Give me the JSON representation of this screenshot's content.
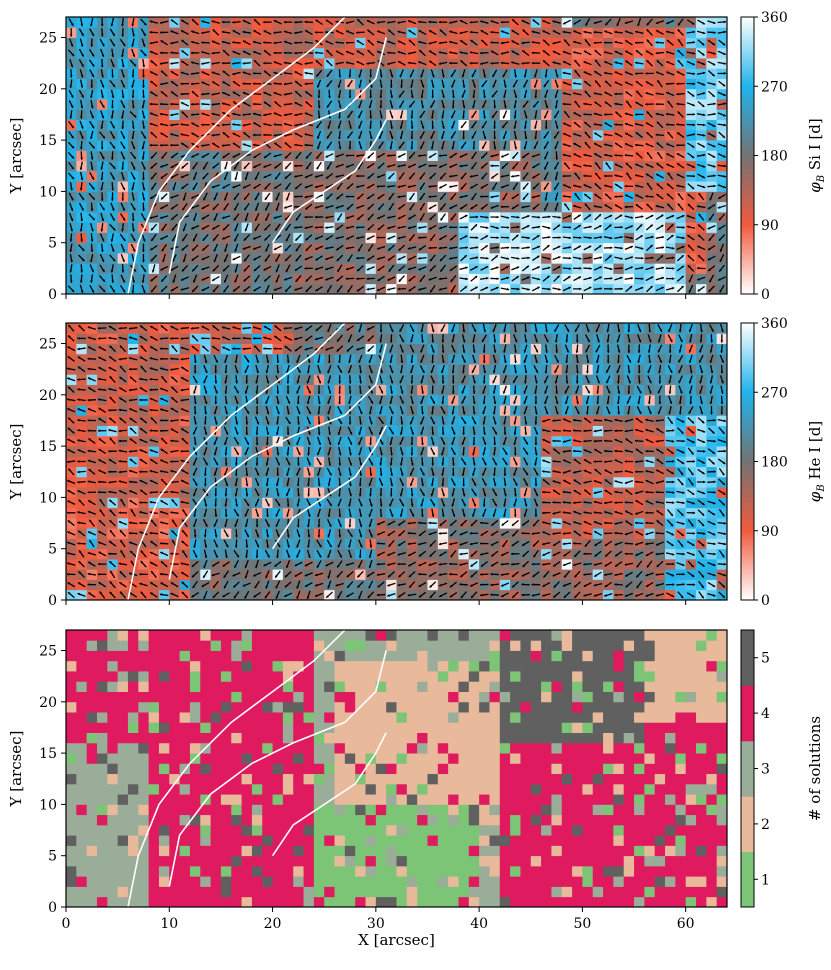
{
  "chart_data": [
    {
      "type": "heatmap",
      "panel": "top",
      "ylabel": "Y [arcsec]",
      "xlim": [
        0,
        64
      ],
      "ylim": [
        0,
        27
      ],
      "xticks": [
        0,
        10,
        20,
        30,
        40,
        50,
        60
      ],
      "yticks": [
        0,
        5,
        10,
        15,
        20,
        25
      ],
      "colorbar": {
        "label": "φB Si I [d]",
        "label_prefix": "φ",
        "label_sub": "B",
        "label_suffix": " Si I [d]",
        "range": [
          0,
          360
        ],
        "ticks": [
          0,
          90,
          180,
          270,
          360
        ],
        "colormap": [
          "#ffffff",
          "#f25a3e",
          "#737373",
          "#1fb4ec",
          "#ffffff"
        ]
      },
      "overlay": "magnetic field azimuth arrows and white intensity contours",
      "regions": [
        {
          "label": "left patchy blue / white",
          "x": [
            0,
            8
          ],
          "y": [
            0,
            27
          ],
          "value": 240
        },
        {
          "label": "upper-left red band",
          "x": [
            8,
            48
          ],
          "y": [
            14,
            27
          ],
          "value": 120
        },
        {
          "label": "central blue fan",
          "x": [
            24,
            50
          ],
          "y": [
            6,
            22
          ],
          "value": 215
        },
        {
          "label": "central gray sector",
          "x": [
            22,
            46
          ],
          "y": [
            0,
            14
          ],
          "value": 165
        },
        {
          "label": "right red column",
          "x": [
            48,
            62
          ],
          "y": [
            2,
            26
          ],
          "value": 110
        },
        {
          "label": "lower-right white / light blue",
          "x": [
            38,
            60
          ],
          "y": [
            0,
            8
          ],
          "value": 330
        },
        {
          "label": "upper-right blue corner",
          "x": [
            60,
            64
          ],
          "y": [
            10,
            27
          ],
          "value": 300
        }
      ],
      "contours": [
        [
          [
            6,
            0
          ],
          [
            7,
            5
          ],
          [
            9,
            10
          ],
          [
            12,
            14
          ],
          [
            16,
            18
          ],
          [
            20,
            21
          ],
          [
            24,
            24
          ],
          [
            27,
            27
          ]
        ],
        [
          [
            10,
            2
          ],
          [
            11,
            7
          ],
          [
            14,
            11
          ],
          [
            18,
            14
          ],
          [
            22,
            16
          ],
          [
            27,
            18
          ],
          [
            30,
            21
          ],
          [
            31,
            25
          ]
        ],
        [
          [
            20,
            5
          ],
          [
            22,
            8
          ],
          [
            25,
            10
          ],
          [
            28,
            12
          ],
          [
            30,
            15
          ],
          [
            31,
            17
          ]
        ]
      ]
    },
    {
      "type": "heatmap",
      "panel": "middle",
      "ylabel": "Y [arcsec]",
      "xlim": [
        0,
        64
      ],
      "ylim": [
        0,
        27
      ],
      "xticks": [
        0,
        10,
        20,
        30,
        40,
        50,
        60
      ],
      "yticks": [
        0,
        5,
        10,
        15,
        20,
        25
      ],
      "colorbar": {
        "label": "φB He I [d]",
        "label_prefix": "φ",
        "label_sub": "B",
        "label_suffix": " He I [d]",
        "range": [
          0,
          360
        ],
        "ticks": [
          0,
          90,
          180,
          270,
          360
        ],
        "colormap": [
          "#ffffff",
          "#f25a3e",
          "#737373",
          "#1fb4ec",
          "#ffffff"
        ]
      },
      "overlay": "magnetic field azimuth arrows and white intensity contours",
      "regions": [
        {
          "label": "left red wedge",
          "x": [
            0,
            22
          ],
          "y": [
            10,
            27
          ],
          "value": 115
        },
        {
          "label": "lower-left red strip",
          "x": [
            0,
            12
          ],
          "y": [
            0,
            10
          ],
          "value": 105
        },
        {
          "label": "diagonal blue band",
          "x": [
            12,
            46
          ],
          "y": [
            4,
            24
          ],
          "value": 230
        },
        {
          "label": "upper-right blue",
          "x": [
            30,
            64
          ],
          "y": [
            18,
            27
          ],
          "value": 225
        },
        {
          "label": "lower gray / red patches",
          "x": [
            30,
            58
          ],
          "y": [
            0,
            8
          ],
          "value": 160
        },
        {
          "label": "right red mix",
          "x": [
            46,
            58
          ],
          "y": [
            6,
            18
          ],
          "value": 125
        },
        {
          "label": "far-right light blue",
          "x": [
            58,
            64
          ],
          "y": [
            0,
            18
          ],
          "value": 290
        }
      ],
      "contours": [
        [
          [
            6,
            0
          ],
          [
            7,
            5
          ],
          [
            9,
            10
          ],
          [
            12,
            14
          ],
          [
            16,
            18
          ],
          [
            20,
            21
          ],
          [
            24,
            24
          ],
          [
            27,
            27
          ]
        ],
        [
          [
            10,
            2
          ],
          [
            11,
            7
          ],
          [
            14,
            11
          ],
          [
            18,
            14
          ],
          [
            22,
            16
          ],
          [
            27,
            18
          ],
          [
            30,
            21
          ],
          [
            31,
            25
          ]
        ],
        [
          [
            20,
            5
          ],
          [
            22,
            8
          ],
          [
            25,
            10
          ],
          [
            28,
            12
          ],
          [
            30,
            15
          ],
          [
            31,
            17
          ]
        ]
      ]
    },
    {
      "type": "heatmap",
      "panel": "bottom",
      "xlabel": "X [arcsec]",
      "ylabel": "Y [arcsec]",
      "xlim": [
        0,
        64
      ],
      "ylim": [
        0,
        27
      ],
      "xticks": [
        0,
        10,
        20,
        30,
        40,
        50,
        60
      ],
      "yticks": [
        0,
        5,
        10,
        15,
        20,
        25
      ],
      "colorbar": {
        "label": "# of solutions",
        "range": [
          0.5,
          5.5
        ],
        "ticks": [
          1,
          2,
          3,
          4,
          5
        ],
        "categories": [
          {
            "value": 1,
            "color": "#7cc576"
          },
          {
            "value": 2,
            "color": "#e8b99a"
          },
          {
            "value": 3,
            "color": "#9aad98"
          },
          {
            "value": 4,
            "color": "#e01a5e"
          },
          {
            "value": 5,
            "color": "#606060"
          }
        ]
      },
      "regions": [
        {
          "label": "left magenta",
          "x": [
            0,
            24
          ],
          "y": [
            16,
            27
          ],
          "value": 4
        },
        {
          "label": "left gray-green",
          "x": [
            0,
            12
          ],
          "y": [
            0,
            16
          ],
          "value": 3
        },
        {
          "label": "diagonal magenta band",
          "x": [
            8,
            24
          ],
          "y": [
            0,
            16
          ],
          "value": 4
        },
        {
          "label": "central peach",
          "x": [
            26,
            42
          ],
          "y": [
            8,
            24
          ],
          "value": 2
        },
        {
          "label": "lower-central green",
          "x": [
            24,
            40
          ],
          "y": [
            0,
            10
          ],
          "value": 1
        },
        {
          "label": "right magenta",
          "x": [
            42,
            64
          ],
          "y": [
            0,
            18
          ],
          "value": 4
        },
        {
          "label": "upper-right dark gray",
          "x": [
            42,
            56
          ],
          "y": [
            16,
            27
          ],
          "value": 5
        },
        {
          "label": "far-right peach / green",
          "x": [
            56,
            64
          ],
          "y": [
            18,
            27
          ],
          "value": 2
        }
      ],
      "contours": [
        [
          [
            6,
            0
          ],
          [
            7,
            5
          ],
          [
            9,
            10
          ],
          [
            12,
            14
          ],
          [
            16,
            18
          ],
          [
            20,
            21
          ],
          [
            24,
            24
          ],
          [
            27,
            27
          ]
        ],
        [
          [
            10,
            2
          ],
          [
            11,
            7
          ],
          [
            14,
            11
          ],
          [
            18,
            14
          ],
          [
            22,
            16
          ],
          [
            27,
            18
          ],
          [
            30,
            21
          ],
          [
            31,
            25
          ]
        ],
        [
          [
            20,
            5
          ],
          [
            22,
            8
          ],
          [
            25,
            10
          ],
          [
            28,
            12
          ],
          [
            30,
            15
          ],
          [
            31,
            17
          ]
        ]
      ]
    }
  ]
}
